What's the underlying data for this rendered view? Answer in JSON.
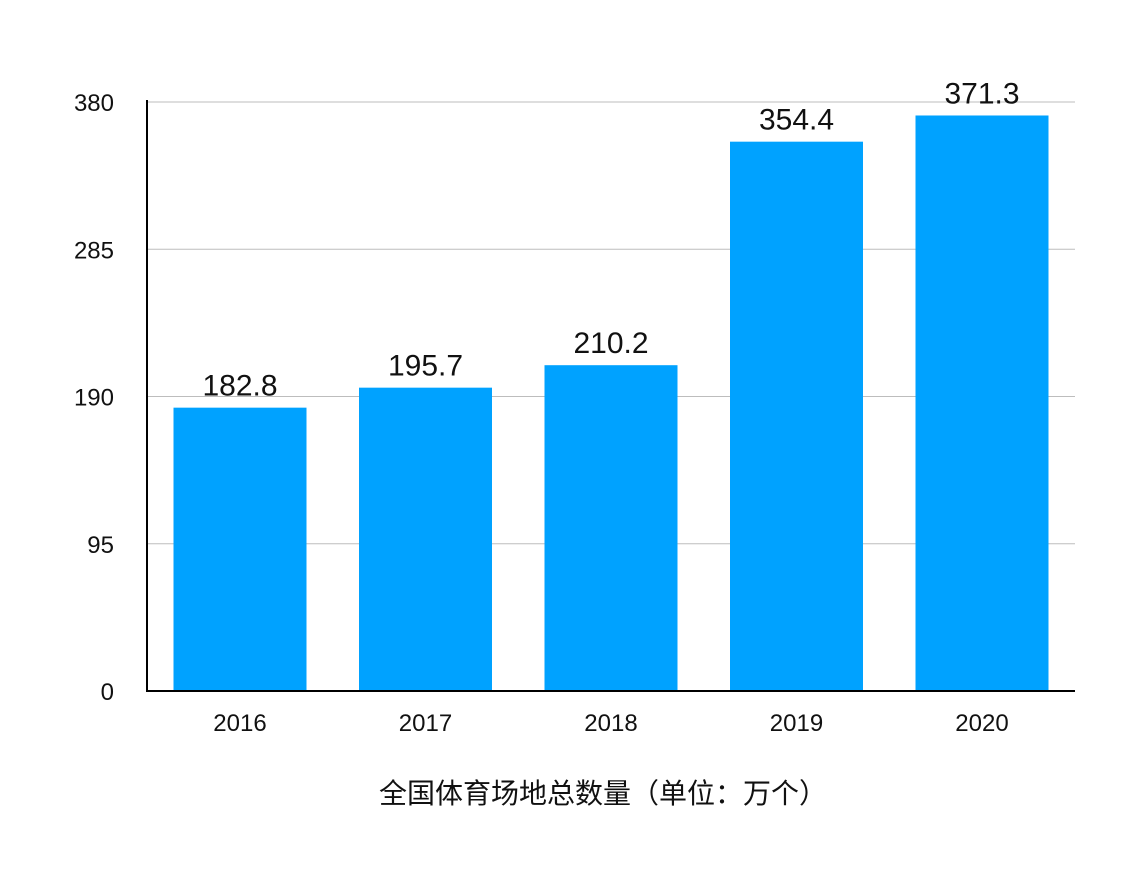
{
  "chart_data": {
    "type": "bar",
    "categories": [
      "2016",
      "2017",
      "2018",
      "2019",
      "2020"
    ],
    "values": [
      182.8,
      195.7,
      210.2,
      354.4,
      371.3
    ],
    "value_labels": [
      "182.8",
      "195.7",
      "210.2",
      "354.4",
      "371.3"
    ],
    "title": "",
    "xlabel": "全国体育场地总数量（单位：万个）",
    "ylabel": "",
    "ylim": [
      0,
      380
    ],
    "yticks": [
      0,
      95,
      190,
      285,
      380
    ],
    "ytick_labels": [
      "0",
      "95",
      "190",
      "285",
      "380"
    ],
    "grid": true,
    "legend": "none",
    "bar_color": "#00A2FF",
    "grid_color": "#BDBDBD",
    "axis_color": "#000000"
  }
}
